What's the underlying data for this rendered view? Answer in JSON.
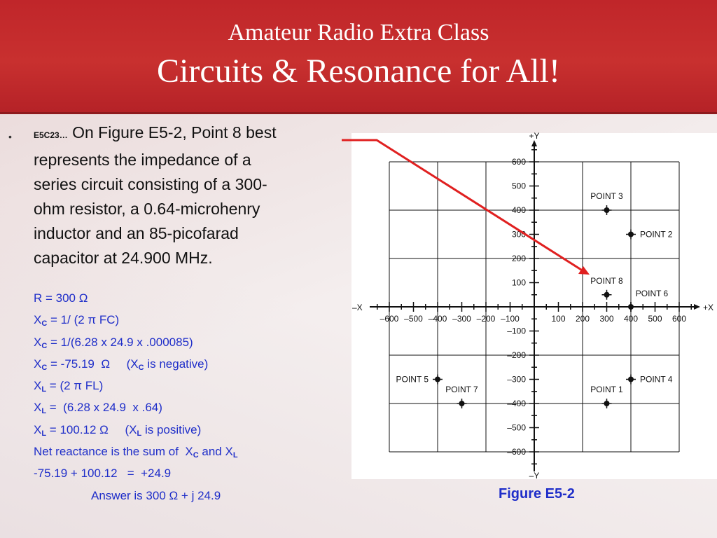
{
  "title": {
    "line1": "Amateur Radio Extra Class",
    "line2": "Circuits & Resonance for All!"
  },
  "question": {
    "id": "E5C23…",
    "lines": [
      "On Figure E5-2, Point 8 best",
      "represents the impedance of a",
      "series circuit consisting of a 300-",
      "ohm resistor, a 0.64-microhenry",
      "inductor and an 85-picofarad",
      "capacitor at 24.900 MHz."
    ]
  },
  "working": [
    [
      "R = 300 Ω"
    ],
    [
      "X",
      "C",
      " = 1/ (2 π FC)"
    ],
    [
      "X",
      "C",
      " = 1/(6.28 x 24.9 x .000085)"
    ],
    [
      "X",
      "C",
      " = -75.19  Ω     (X",
      "C",
      " is negative)"
    ],
    [
      "X",
      "L",
      " = (2 π FL)"
    ],
    [
      "X",
      "L",
      " =  (6.28 x 24.9  x .64)"
    ],
    [
      "X",
      "L",
      " = 100.12 Ω     (X",
      "L",
      " is positive)"
    ],
    [
      "Net reactance is the sum of  X",
      "C",
      " and X",
      "L"
    ],
    [
      "-75.19 + 100.12   =  +24.9"
    ],
    [
      "Answer is 300 Ω + j 24.9"
    ]
  ],
  "figure": {
    "caption": "Figure E5-2",
    "axis_labels": {
      "x_pos": "+X",
      "x_neg": "–X",
      "y_pos": "+Y",
      "y_neg": "–Y"
    },
    "x_ticks": [
      {
        "v": -600,
        "label": "–600"
      },
      {
        "v": -500,
        "label": "–500"
      },
      {
        "v": -400,
        "label": "–400"
      },
      {
        "v": -300,
        "label": "–300"
      },
      {
        "v": -200,
        "label": "–200"
      },
      {
        "v": -100,
        "label": "–100"
      },
      {
        "v": 100,
        "label": "100"
      },
      {
        "v": 200,
        "label": "200"
      },
      {
        "v": 300,
        "label": "300"
      },
      {
        "v": 400,
        "label": "400"
      },
      {
        "v": 500,
        "label": "500"
      },
      {
        "v": 600,
        "label": "600"
      }
    ],
    "y_ticks": [
      {
        "v": 600,
        "label": "600"
      },
      {
        "v": 500,
        "label": "500"
      },
      {
        "v": 400,
        "label": "400"
      },
      {
        "v": 300,
        "label": "300"
      },
      {
        "v": 200,
        "label": "200"
      },
      {
        "v": 100,
        "label": "100"
      },
      {
        "v": -100,
        "label": "–100"
      },
      {
        "v": -200,
        "label": "–200"
      },
      {
        "v": -300,
        "label": "–300"
      },
      {
        "v": -400,
        "label": "–400"
      },
      {
        "v": -500,
        "label": "–500"
      },
      {
        "v": -600,
        "label": "–600"
      }
    ],
    "points": [
      {
        "label": "POINT 1",
        "x": 300,
        "y": -400,
        "label_side": "above"
      },
      {
        "label": "POINT 2",
        "x": 400,
        "y": 300,
        "label_side": "right"
      },
      {
        "label": "POINT 3",
        "x": 300,
        "y": 400,
        "label_side": "above"
      },
      {
        "label": "POINT 4",
        "x": 400,
        "y": -300,
        "label_side": "right"
      },
      {
        "label": "POINT 5",
        "x": -400,
        "y": -300,
        "label_side": "left"
      },
      {
        "label": "POINT 6",
        "x": 400,
        "y": 0,
        "label_side": "above-right"
      },
      {
        "label": "POINT 7",
        "x": -300,
        "y": -400,
        "label_side": "above"
      },
      {
        "label": "POINT 8",
        "x": 300,
        "y": 50,
        "label_side": "above"
      }
    ],
    "arrow_color": "#e02020"
  }
}
